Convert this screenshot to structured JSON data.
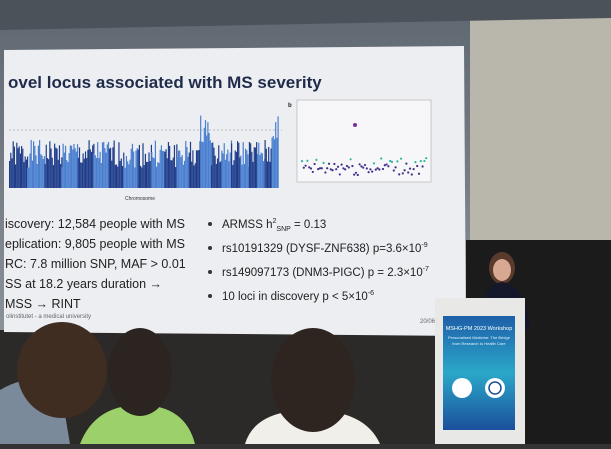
{
  "slide": {
    "title": "ovel locus associated with MS severity",
    "plot_label": "b",
    "x_axis": "Chromosome",
    "left_bullets": [
      "iscovery: 12,584 people with MS",
      "eplication: 9,805 people with MS",
      "RC: 7.8 million SNP, MAF > 0.01",
      "SS at 18.2 years duration →",
      "MSS → RINT"
    ],
    "right_bullets": [
      {
        "pre": "ARMSS h",
        "sup": "2",
        "sub": "SNP",
        "post": " = 0.13"
      },
      {
        "pre": "rs10191329 (DYSF-ZNF638) p=3.6×10",
        "sup": "-9"
      },
      {
        "pre": "rs149097173 (DNM3-PIGC) p = 2.3×10",
        "sup": "-7"
      },
      {
        "pre": "10 loci in discovery p < 5×10",
        "sup": "-6"
      }
    ],
    "footer": "olinstitutet - a medical university",
    "date": "20/06/2023"
  },
  "podium": {
    "line1": "MSHG-PM 2023 Workshop",
    "line2": "Personalised Medicine: The Bridge",
    "line3": "from Research to Health Care"
  }
}
